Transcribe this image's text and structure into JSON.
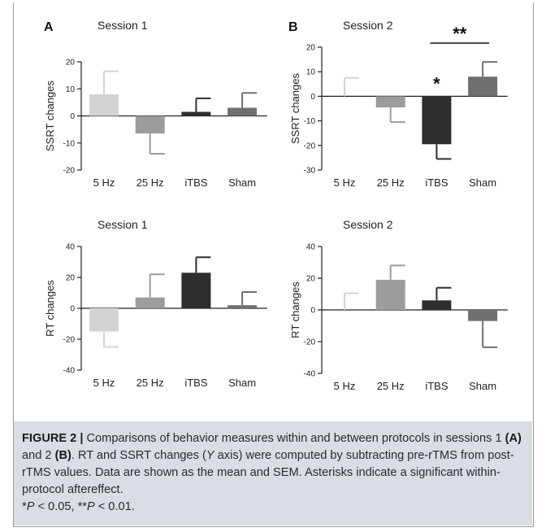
{
  "panels": [
    {
      "letter": "A",
      "title": "Session 1",
      "chart_data": {
        "type": "bar",
        "categories": [
          "5 Hz",
          "25 Hz",
          "iTBS",
          "Sham"
        ],
        "values": [
          8,
          -6.5,
          1.5,
          3
        ],
        "errors": [
          8.5,
          7.5,
          5,
          5.5
        ],
        "ylabel": "SSRT changes",
        "ylim": [
          -20,
          20
        ],
        "yticks": [
          -20,
          -10,
          0,
          10,
          20
        ],
        "ytick_labels": [
          "-20",
          "-10",
          "0",
          "10",
          "20"
        ],
        "colors": [
          "#d3d3d3",
          "#9c9c9c",
          "#2e2e2e",
          "#707070"
        ],
        "annotations": []
      }
    },
    {
      "letter": "B",
      "title": "Session 2",
      "chart_data": {
        "type": "bar",
        "categories": [
          "5 Hz",
          "25 Hz",
          "iTBS",
          "Sham"
        ],
        "values": [
          0,
          -4.5,
          -19.5,
          8
        ],
        "errors": [
          7.5,
          6,
          6,
          6
        ],
        "ylabel": "SSRT changes",
        "ylim": [
          -30,
          20
        ],
        "yticks": [
          -30,
          -20,
          -10,
          0,
          10,
          20
        ],
        "ytick_labels": [
          "-30",
          "-20",
          "-10",
          "0",
          "10",
          "20"
        ],
        "colors": [
          "#d3d3d3",
          "#9c9c9c",
          "#2e2e2e",
          "#707070"
        ],
        "annotations": [
          {
            "text": "*",
            "category": 2
          },
          {
            "text": "**",
            "bracket": [
              2,
              3
            ]
          }
        ]
      }
    },
    {
      "letter": "",
      "title": "Session 1",
      "chart_data": {
        "type": "bar",
        "categories": [
          "5 Hz",
          "25 Hz",
          "iTBS",
          "Sham"
        ],
        "values": [
          -15,
          7,
          23,
          2
        ],
        "errors": [
          10,
          15,
          10,
          8.5
        ],
        "ylabel": "RT changes",
        "ylim": [
          -40,
          40
        ],
        "yticks": [
          -40,
          -20,
          0,
          20,
          40
        ],
        "ytick_labels": [
          "-40",
          "-20",
          "0",
          "20",
          "40"
        ],
        "colors": [
          "#d3d3d3",
          "#9c9c9c",
          "#2e2e2e",
          "#707070"
        ],
        "annotations": []
      }
    },
    {
      "letter": "",
      "title": "Session 2",
      "chart_data": {
        "type": "bar",
        "categories": [
          "5 Hz",
          "25 Hz",
          "iTBS",
          "Sham"
        ],
        "values": [
          0,
          19,
          6,
          -7
        ],
        "errors": [
          10.5,
          9,
          8,
          16.5
        ],
        "ylabel": "RT changes",
        "ylim": [
          -40,
          40
        ],
        "yticks": [
          -40,
          -20,
          0,
          20,
          40
        ],
        "ytick_labels": [
          "-40",
          "-20",
          "0",
          "20",
          "40"
        ],
        "colors": [
          "#d3d3d3",
          "#9c9c9c",
          "#2e2e2e",
          "#707070"
        ],
        "annotations": []
      }
    }
  ],
  "caption": {
    "label": "FIGURE 2 |",
    "text1": " Comparisons of behavior measures within and between protocols in sessions 1 ",
    "ref_a": "(A)",
    "text2": " and 2 ",
    "ref_b": "(B)",
    "text3": ". RT and SSRT changes (",
    "axis_letter": "Y",
    "text4": " axis) were computed by subtracting pre-rTMS from post-rTMS values. Data are shown as the mean and SEM. Asterisks indicate a significant within-protocol aftereffect.",
    "sig1_mark": "*",
    "sig1_p": "P",
    "sig1_text": " < 0.05, ",
    "sig2_mark": "**",
    "sig2_p": "P",
    "sig2_text": " < 0.01."
  }
}
